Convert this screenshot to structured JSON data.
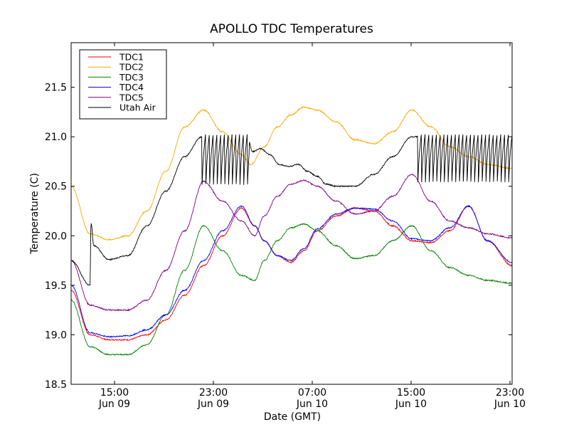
{
  "chart_data": {
    "type": "line",
    "title": "APOLLO TDC Temperatures",
    "xlabel": "Date (GMT)",
    "ylabel": "Temperature (C)",
    "ylim": [
      18.5,
      21.95
    ],
    "xlim_hours": [
      10.0,
      33.3
    ],
    "x_unit": "hours since Jun 09 00:00 GMT",
    "yticks": [
      18.5,
      19.0,
      19.5,
      20.0,
      20.5,
      21.0,
      21.5
    ],
    "ytick_labels": [
      "18.5",
      "19.0",
      "19.5",
      "20.0",
      "20.5",
      "21.0",
      "21.5"
    ],
    "xticks": [
      {
        "hour": 12.3,
        "line1": "15:00",
        "line2": "Jun 09"
      },
      {
        "hour": 20.3,
        "line1": "23:00",
        "line2": "Jun 09"
      },
      {
        "hour": 28.3,
        "line1": "07:00",
        "line2": "Jun 10"
      },
      {
        "hour": 36.3,
        "line1": "15:00",
        "line2": "Jun 10"
      },
      {
        "hour": 44.3,
        "line1": "23:00",
        "line2": "Jun 10"
      }
    ],
    "grid": false,
    "legend_position": "top-left",
    "series": [
      {
        "name": "TDC1",
        "color": "#ff0000",
        "x": [
          10.0,
          11.0,
          12.0,
          13.0,
          14.0,
          15.0,
          16.0,
          17.0,
          18.0,
          19.0,
          19.7,
          20.2,
          20.9,
          21.6,
          22.3,
          23.0,
          24.0,
          25.0,
          26.0,
          27.0,
          28.0,
          29.0,
          30.0,
          31.0,
          32.0,
          33.3
        ],
        "y": [
          19.45,
          19.0,
          18.95,
          18.95,
          19.0,
          19.15,
          19.4,
          19.7,
          20.0,
          20.28,
          20.1,
          19.95,
          19.8,
          19.73,
          19.85,
          20.05,
          20.2,
          20.28,
          20.25,
          20.1,
          19.95,
          19.93,
          20.05,
          20.3,
          19.95,
          19.7
        ]
      },
      {
        "name": "TDC2",
        "color": "#ffa500",
        "x": [
          10.0,
          11.0,
          12.0,
          13.0,
          14.0,
          15.0,
          16.0,
          17.0,
          18.0,
          19.0,
          19.5,
          20.2,
          20.9,
          21.6,
          22.3,
          23.0,
          24.0,
          25.0,
          26.0,
          27.0,
          28.0,
          29.0,
          30.0,
          31.0,
          32.0,
          33.3
        ],
        "y": [
          20.5,
          20.02,
          19.96,
          20.0,
          20.25,
          20.65,
          21.1,
          21.27,
          21.05,
          20.82,
          20.72,
          20.9,
          21.1,
          21.22,
          21.3,
          21.27,
          21.15,
          20.97,
          20.93,
          21.05,
          21.27,
          21.1,
          20.9,
          20.8,
          20.72,
          20.68
        ]
      },
      {
        "name": "TDC3",
        "color": "#008000",
        "x": [
          10.0,
          11.0,
          12.0,
          13.0,
          14.0,
          15.0,
          16.0,
          17.0,
          18.0,
          19.0,
          19.7,
          20.2,
          20.9,
          21.6,
          22.3,
          23.0,
          24.0,
          25.0,
          26.0,
          27.0,
          28.0,
          29.0,
          30.0,
          31.0,
          32.0,
          33.3
        ],
        "y": [
          19.35,
          18.88,
          18.8,
          18.8,
          18.9,
          19.2,
          19.65,
          20.1,
          19.85,
          19.6,
          19.55,
          19.75,
          19.95,
          20.08,
          20.12,
          20.05,
          19.9,
          19.77,
          19.8,
          19.95,
          20.1,
          19.85,
          19.68,
          19.6,
          19.55,
          19.52
        ]
      },
      {
        "name": "TDC4",
        "color": "#0000ff",
        "x": [
          10.0,
          11.0,
          12.0,
          13.0,
          14.0,
          15.0,
          16.0,
          17.0,
          18.0,
          19.0,
          19.7,
          20.2,
          20.9,
          21.6,
          22.3,
          23.0,
          24.0,
          25.0,
          26.0,
          27.0,
          28.0,
          29.0,
          30.0,
          31.0,
          32.0,
          33.3
        ],
        "y": [
          19.5,
          19.02,
          18.98,
          18.99,
          19.05,
          19.2,
          19.45,
          19.75,
          20.05,
          20.3,
          20.1,
          19.95,
          19.8,
          19.75,
          19.87,
          20.07,
          20.22,
          20.28,
          20.27,
          20.15,
          19.97,
          19.95,
          20.08,
          20.3,
          19.95,
          19.73
        ]
      },
      {
        "name": "TDC5",
        "color": "#800080",
        "x": [
          10.0,
          11.0,
          12.0,
          13.0,
          14.0,
          15.0,
          16.0,
          17.0,
          18.0,
          19.0,
          19.7,
          20.2,
          20.9,
          21.6,
          22.3,
          23.0,
          24.0,
          25.0,
          26.0,
          27.0,
          28.0,
          29.0,
          30.0,
          31.0,
          32.0,
          33.3
        ],
        "y": [
          19.75,
          19.3,
          19.25,
          19.25,
          19.35,
          19.65,
          20.05,
          20.55,
          20.35,
          20.15,
          20.0,
          20.2,
          20.4,
          20.52,
          20.56,
          20.5,
          20.35,
          20.22,
          20.25,
          20.4,
          20.62,
          20.35,
          20.15,
          20.08,
          20.02,
          19.98
        ]
      },
      {
        "name": "Utah Air",
        "color": "#000000",
        "x": [
          10.0,
          11.0,
          11.05,
          11.2,
          12.0,
          13.0,
          14.0,
          15.0,
          16.0,
          16.9,
          19.3,
          19.6,
          20.0,
          20.5,
          21.0,
          21.5,
          22.0,
          22.5,
          23.0,
          23.5,
          24.0,
          25.0,
          26.0,
          27.0,
          28.0,
          28.3,
          33.3
        ],
        "y": [
          19.75,
          19.5,
          20.13,
          19.9,
          19.76,
          19.8,
          20.1,
          20.45,
          20.8,
          21.0,
          21.0,
          20.85,
          20.88,
          20.82,
          20.72,
          20.7,
          20.72,
          20.65,
          20.6,
          20.52,
          20.5,
          20.5,
          20.62,
          20.8,
          21.0,
          21.0,
          21.0
        ]
      }
    ],
    "annotations": {
      "utah_air_oscillations": [
        {
          "from_hour": 16.9,
          "to_hour": 19.4,
          "high": 21.02,
          "low": 20.42
        },
        {
          "from_hour": 28.3,
          "to_hour": 33.3,
          "high": 21.02,
          "low": 20.45
        }
      ]
    }
  }
}
